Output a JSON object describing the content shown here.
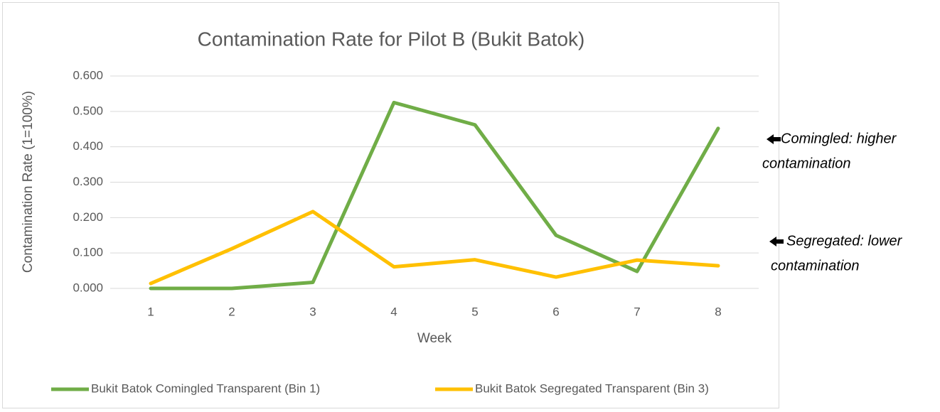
{
  "chart_data": {
    "type": "line",
    "title": "Contamination Rate for Pilot B (Bukit Batok)",
    "x_label": "Week",
    "y_label": "Contamination Rate (1=100%)",
    "categories": [
      "1",
      "2",
      "3",
      "4",
      "5",
      "6",
      "7",
      "8"
    ],
    "series": [
      {
        "name": "Bukit Batok Comingled Transparent (Bin 1)",
        "color": "#70ad47",
        "values": [
          0.0,
          0.0,
          0.017,
          0.525,
          0.462,
          0.15,
          0.048,
          0.452
        ]
      },
      {
        "name": "Bukit Batok Segregated Transparent (Bin 3)",
        "color": "#ffc000",
        "values": [
          0.014,
          0.112,
          0.217,
          0.061,
          0.081,
          0.032,
          0.08,
          0.064
        ]
      }
    ],
    "ylim": [
      0,
      0.6
    ],
    "yticks": [
      {
        "value": 0,
        "label": "0.000"
      },
      {
        "value": 0.1,
        "label": "0.100"
      },
      {
        "value": 0.2,
        "label": "0.200"
      },
      {
        "value": 0.3,
        "label": "0.300"
      },
      {
        "value": 0.4,
        "label": "0.400"
      },
      {
        "value": 0.5,
        "label": "0.500"
      },
      {
        "value": 0.6,
        "label": "0.600"
      }
    ],
    "grid": true,
    "legend": "bottom",
    "annotations": [
      {
        "lines": [
          "Comingled: higher",
          "contamination"
        ]
      },
      {
        "lines": [
          "Segregated: lower",
          "contamination"
        ]
      }
    ]
  }
}
